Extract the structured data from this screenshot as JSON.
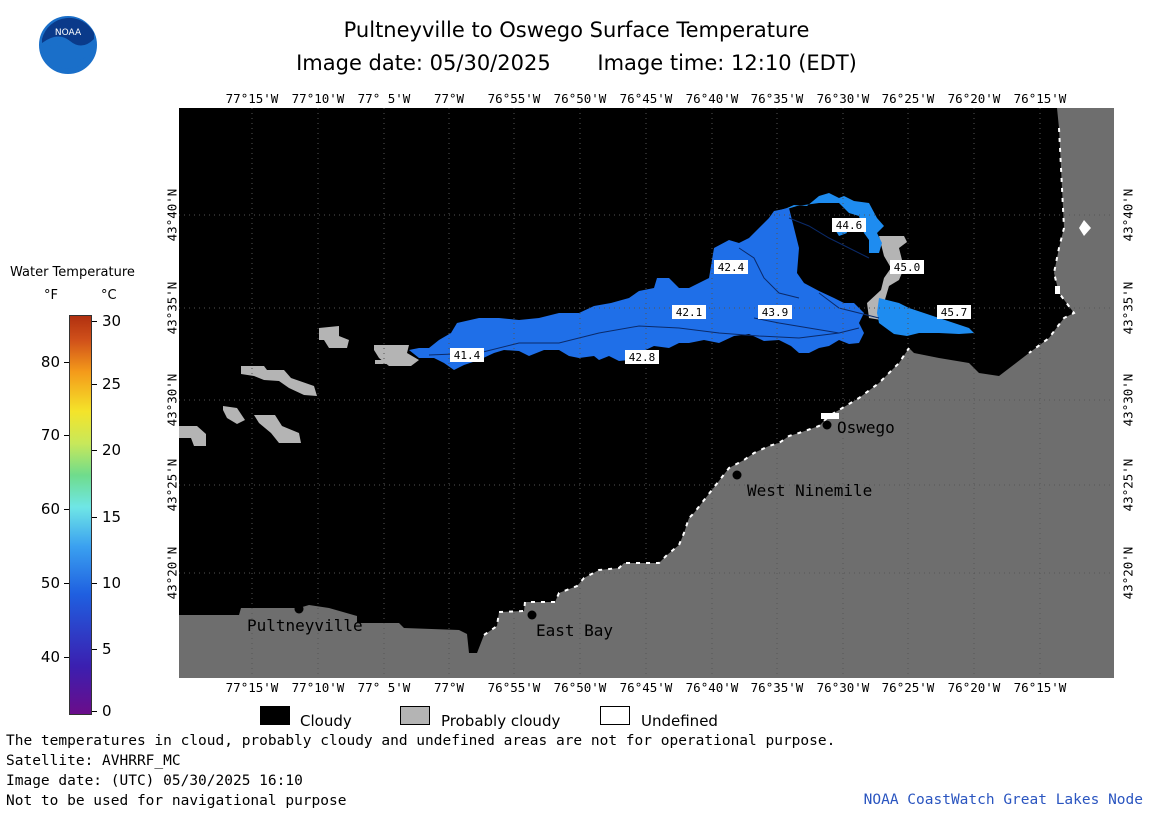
{
  "header": {
    "title": "Pultneyville to Oswego Surface Temperature",
    "image_date": "Image date: 05/30/2025",
    "image_time": "Image time: 12:10 (EDT)"
  },
  "logo_text": "NOAA",
  "legend": {
    "title": "Water Temperature",
    "unit_f": "°F",
    "unit_c": "°C",
    "f_ticks": [
      "80",
      "70",
      "60",
      "50",
      "40"
    ],
    "c_ticks": [
      "30",
      "25",
      "20",
      "15",
      "10",
      "5",
      "0"
    ]
  },
  "map": {
    "lon_labels": [
      "77°15'W",
      "77°10'W",
      "77° 5'W",
      "77°W",
      "76°55'W",
      "76°50'W",
      "76°45'W",
      "76°40'W",
      "76°35'W",
      "76°30'W",
      "76°25'W",
      "76°20'W",
      "76°15'W"
    ],
    "lat_labels": [
      "43°40'N",
      "43°35'N",
      "43°30'N",
      "43°25'N",
      "43°20'N"
    ],
    "places": {
      "pultneyville": "Pultneyville",
      "east_bay": "East Bay",
      "oswego": "Oswego",
      "west_ninemile": "West Ninemile"
    },
    "temps": [
      "44.6",
      "42.4",
      "45.0",
      "42.1",
      "43.9",
      "45.7",
      "41.4",
      "42.8"
    ],
    "colors": {
      "land": "#6e6e6e",
      "cloud": "#000000",
      "probably_cloudy": "#b4b4b4",
      "water_warm": "#1e8cf0",
      "water_cool": "#1f5fe0"
    }
  },
  "key": {
    "cloudy": "Cloudy",
    "probably_cloudy": "Probably cloudy",
    "undefined": "Undefined"
  },
  "footer": {
    "disclaimer": "The temperatures in cloud, probably cloudy and undefined areas are not for operational purpose.",
    "satellite": "Satellite: AVHRRF_MC",
    "image_date_utc": "Image date: (UTC) 05/30/2025  16:10",
    "nav_warning": "Not to be used for navigational purpose",
    "credit": "NOAA CoastWatch Great Lakes Node"
  }
}
